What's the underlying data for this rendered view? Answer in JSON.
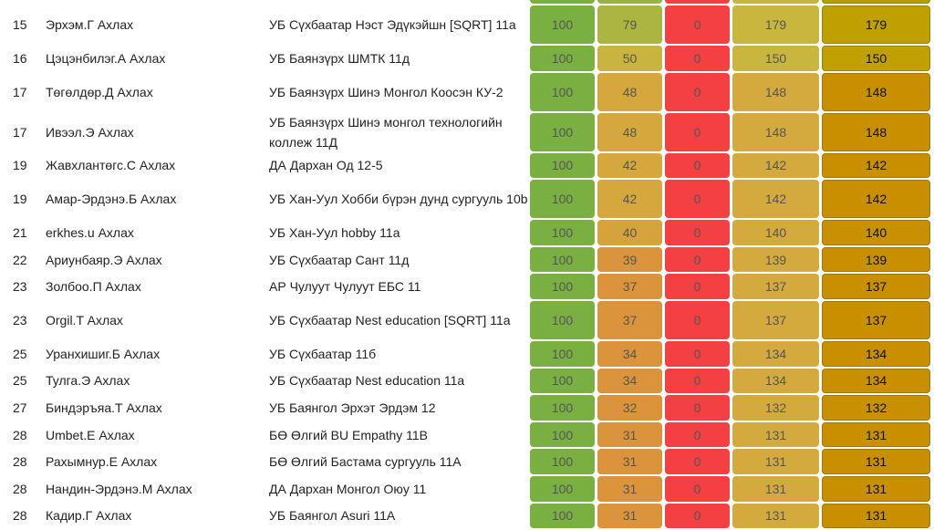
{
  "colors": {
    "green": "#7ab041",
    "red": "#f54043"
  },
  "rows": [
    {
      "rank": "",
      "name": "",
      "school": "",
      "c1": "",
      "c2": "",
      "c3": "",
      "c4": "",
      "c5": "",
      "c2color": "#95b440",
      "c4color": "#c2b63e",
      "c5color": "#b5a000",
      "double": true
    },
    {
      "rank": "15",
      "name": "Эрхэм.Г Ахлах",
      "school": "УБ Сүхбаатар Нэст Эдүкэйшн [SQRT] 11а",
      "c1": "100",
      "c2": "79",
      "c3": "0",
      "c4": "179",
      "c5": "179",
      "c2color": "#abb542",
      "c4color": "#c9b63e",
      "c5color": "#bfa000",
      "double": true
    },
    {
      "rank": "16",
      "name": "Цэцэнбилэг.А Ахлах",
      "school": "УБ Баянзүрх ШМТК 11д",
      "c1": "100",
      "c2": "50",
      "c3": "0",
      "c4": "150",
      "c5": "150",
      "c2color": "#c8b43e",
      "c4color": "#c9b63e",
      "c5color": "#bfa000",
      "double": false
    },
    {
      "rank": "17",
      "name": "Төгөлдөр.Д Ахлах",
      "school": "УБ Баянзүрх Шинэ Монгол Коосэн КУ-2",
      "c1": "100",
      "c2": "48",
      "c3": "0",
      "c4": "148",
      "c5": "148",
      "c2color": "#d4a83c",
      "c4color": "#d4aa3e",
      "c5color": "#c89000",
      "double": true
    },
    {
      "rank": "17",
      "name": "Ивээл.Э Ахлах",
      "school": "УБ Баянзүрх Шинэ монгол технологийн коллеж 11Д",
      "c1": "100",
      "c2": "48",
      "c3": "0",
      "c4": "148",
      "c5": "148",
      "c2color": "#d4a83c",
      "c4color": "#d4aa3e",
      "c5color": "#c89000",
      "double": true
    },
    {
      "rank": "19",
      "name": "Жавхлантөгс.С Ахлах",
      "school": "ДА Дархан Од 12-5",
      "c1": "100",
      "c2": "42",
      "c3": "0",
      "c4": "142",
      "c5": "142",
      "c2color": "#d4a83c",
      "c4color": "#d4aa3e",
      "c5color": "#c89000",
      "double": false
    },
    {
      "rank": "19",
      "name": "Амар-Эрдэнэ.Б Ахлах",
      "school": "УБ Хан-Уул Хобби бүрэн дунд сургууль 10b",
      "c1": "100",
      "c2": "42",
      "c3": "0",
      "c4": "142",
      "c5": "142",
      "c2color": "#d4a83c",
      "c4color": "#d4aa3e",
      "c5color": "#c89000",
      "double": true
    },
    {
      "rank": "21",
      "name": "erkhes.u Ахлах",
      "school": "УБ Хан-Уул hobby 11а",
      "c1": "100",
      "c2": "40",
      "c3": "0",
      "c4": "140",
      "c5": "140",
      "c2color": "#d6a23c",
      "c4color": "#d4aa3e",
      "c5color": "#c89000",
      "double": false
    },
    {
      "rank": "22",
      "name": "Ариунбаяр.Э Ахлах",
      "school": "УБ Сүхбаатар Сант 11д",
      "c1": "100",
      "c2": "39",
      "c3": "0",
      "c4": "139",
      "c5": "139",
      "c2color": "#db943c",
      "c4color": "#d4aa3e",
      "c5color": "#c89000",
      "double": false
    },
    {
      "rank": "23",
      "name": "Золбоо.П Ахлах",
      "school": "АР Чулуут Чулуут ЕБС 11",
      "c1": "100",
      "c2": "37",
      "c3": "0",
      "c4": "137",
      "c5": "137",
      "c2color": "#db943c",
      "c4color": "#d4aa3e",
      "c5color": "#c89000",
      "double": false
    },
    {
      "rank": "23",
      "name": "Orgil.T Ахлах",
      "school": "УБ Сүхбаатар Nest education [SQRT] 11а",
      "c1": "100",
      "c2": "37",
      "c3": "0",
      "c4": "137",
      "c5": "137",
      "c2color": "#db943c",
      "c4color": "#d4aa3e",
      "c5color": "#c89000",
      "double": true
    },
    {
      "rank": "25",
      "name": "Уранхишиг.Б Ахлах",
      "school": "УБ Сүхбаатар 11б",
      "c1": "100",
      "c2": "34",
      "c3": "0",
      "c4": "134",
      "c5": "134",
      "c2color": "#db943c",
      "c4color": "#d4aa3e",
      "c5color": "#c89000",
      "double": false
    },
    {
      "rank": "25",
      "name": "Тулга.Э Ахлах",
      "school": "УБ Сүхбаатар Nest education 11а",
      "c1": "100",
      "c2": "34",
      "c3": "0",
      "c4": "134",
      "c5": "134",
      "c2color": "#db943c",
      "c4color": "#d4aa3e",
      "c5color": "#c89000",
      "double": false
    },
    {
      "rank": "27",
      "name": "Биндэръяа.Т Ахлах",
      "school": "УБ Баянгол Эрхэт Эрдэм 12",
      "c1": "100",
      "c2": "32",
      "c3": "0",
      "c4": "132",
      "c5": "132",
      "c2color": "#db943c",
      "c4color": "#d4aa3e",
      "c5color": "#c89000",
      "double": false
    },
    {
      "rank": "28",
      "name": "Umbet.E Ахлах",
      "school": "БӨ Өлгий BU Empathy 11B",
      "c1": "100",
      "c2": "31",
      "c3": "0",
      "c4": "131",
      "c5": "131",
      "c2color": "#db943c",
      "c4color": "#d4aa3e",
      "c5color": "#c89000",
      "double": false
    },
    {
      "rank": "28",
      "name": "Рахымнур.Е Ахлах",
      "school": "БӨ Өлгий Бастама сургууль 11А",
      "c1": "100",
      "c2": "31",
      "c3": "0",
      "c4": "131",
      "c5": "131",
      "c2color": "#db943c",
      "c4color": "#d4aa3e",
      "c5color": "#c89000",
      "double": false
    },
    {
      "rank": "28",
      "name": "Нандин-Эрдэнэ.М Ахлах",
      "school": "ДА Дархан Монгол Оюу 11",
      "c1": "100",
      "c2": "31",
      "c3": "0",
      "c4": "131",
      "c5": "131",
      "c2color": "#db943c",
      "c4color": "#d4aa3e",
      "c5color": "#c89000",
      "double": false
    },
    {
      "rank": "28",
      "name": "Кадир.Г Ахлах",
      "school": "УБ Баянгол Asuri 11А",
      "c1": "100",
      "c2": "31",
      "c3": "0",
      "c4": "131",
      "c5": "131",
      "c2color": "#db943c",
      "c4color": "#d4aa3e",
      "c5color": "#c89000",
      "double": false
    }
  ]
}
